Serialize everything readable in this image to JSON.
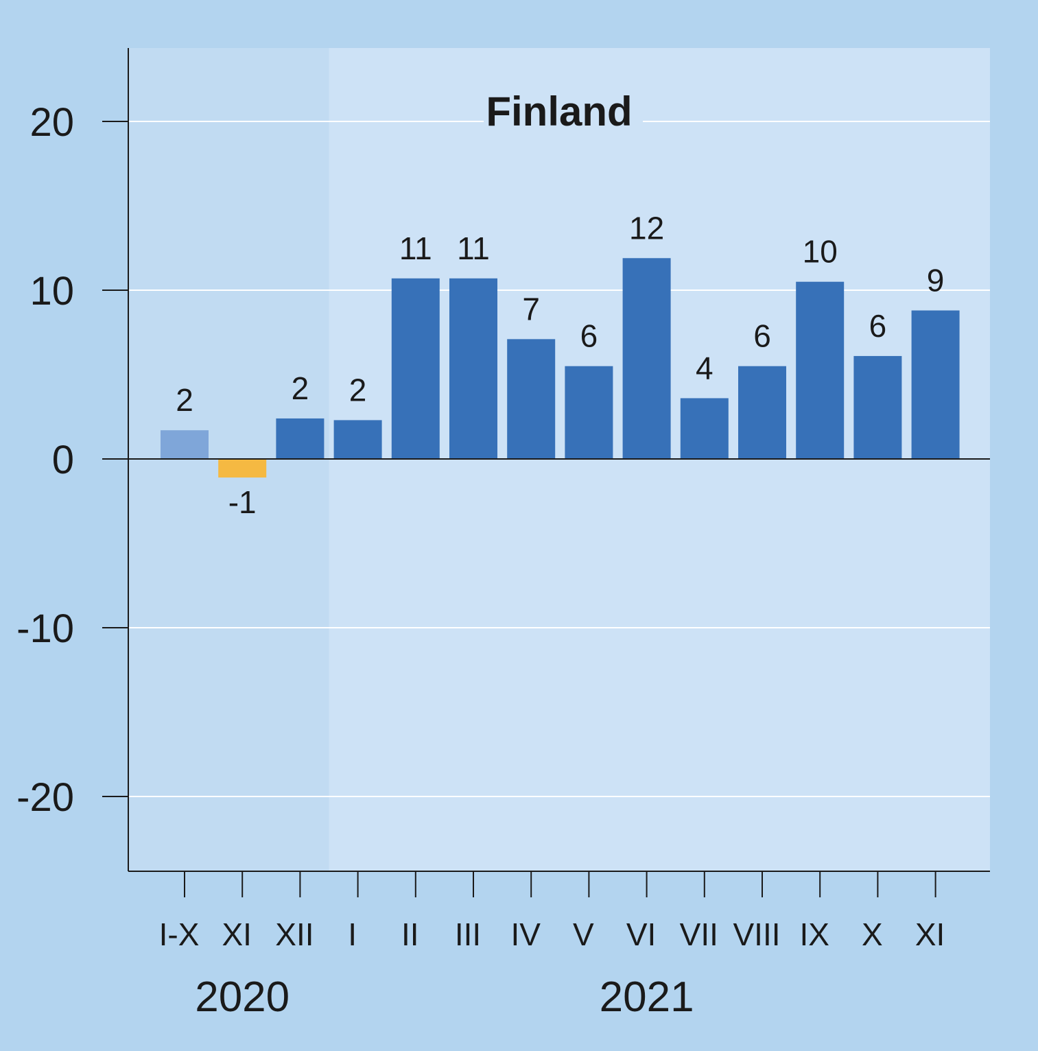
{
  "chart_data": {
    "type": "bar",
    "title": "Finland",
    "categories": [
      "I-X",
      "XI",
      "XII",
      "I",
      "II",
      "III",
      "IV",
      "V",
      "VI",
      "VII",
      "VIII",
      "IX",
      "X",
      "XI"
    ],
    "values": [
      1.7,
      -1.1,
      2.4,
      2.3,
      10.7,
      10.7,
      7.1,
      5.5,
      11.9,
      3.6,
      5.5,
      10.5,
      6.1,
      8.8
    ],
    "data_labels": [
      "2",
      "-1",
      "2",
      "2",
      "11",
      "11",
      "7",
      "6",
      "12",
      "4",
      "6",
      "10",
      "6",
      "9"
    ],
    "groups": [
      {
        "label": "2020",
        "categories": [
          "I-X",
          "XI",
          "XII"
        ]
      },
      {
        "label": "2021",
        "categories": [
          "I",
          "II",
          "III",
          "IV",
          "V",
          "VI",
          "VII",
          "VIII",
          "IX",
          "X",
          "XI"
        ]
      }
    ],
    "ylim": [
      -24.4,
      24.4
    ],
    "yticks": [
      -20,
      -10,
      0,
      10,
      20
    ],
    "ytick_labels": [
      "-20",
      "-10",
      "0",
      "10",
      "20"
    ],
    "xlabel": "",
    "ylabel": "",
    "grid": true,
    "colors": {
      "page_background": "#b3d4ef",
      "plot_2020": "#c1dbf2",
      "plot_2021": "#cde2f6",
      "bar_cumulative": "#7fa6d9",
      "bar_negative": "#f5b942",
      "bar_default": "#3771b8",
      "grid": "#ffffff",
      "axis": "#1a1a1a"
    }
  }
}
